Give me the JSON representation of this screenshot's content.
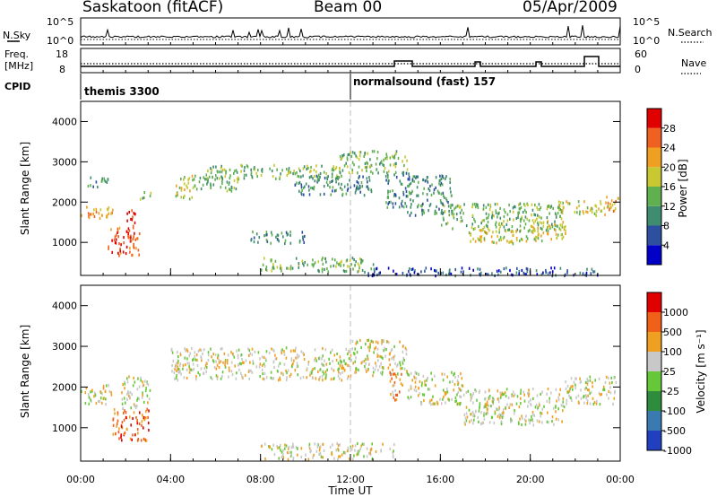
{
  "header": {
    "station": "Saskatoon (fitACF)",
    "beam": "Beam 00",
    "date": "05/Apr/2009"
  },
  "noise_panel": {
    "left_label": "N.Sky",
    "right_label": "N.Search",
    "left_ticks": [
      "10^5",
      "10^0"
    ],
    "right_ticks": [
      "10^5",
      "10^0"
    ]
  },
  "freq_panel": {
    "left_label_1": "Freq.",
    "left_label_2": "[MHz]",
    "right_label": "Nave",
    "left_ticks": [
      "18",
      "8"
    ],
    "right_ticks": [
      "60",
      "0"
    ]
  },
  "cpid_panel": {
    "label": "CPID",
    "segments": [
      "themis 3300",
      "normalsound (fast) 157"
    ]
  },
  "chart_data": [
    {
      "type": "heatmap",
      "title": "",
      "xlabel": "Time UT",
      "ylabel": "Slant Range [km]",
      "x_ticks": [
        "00:00",
        "04:00",
        "08:00",
        "12:00",
        "16:00",
        "20:00",
        "00:00"
      ],
      "y_ticks": [
        "1000",
        "2000",
        "3000",
        "4000"
      ],
      "xlim_hours": [
        0,
        24
      ],
      "ylim_km": [
        180,
        4500
      ],
      "colorbar_label": "Power [dB]",
      "colorbar_ticks": [
        "4",
        "8",
        "12",
        "16",
        "20",
        "24",
        "28"
      ],
      "colors": [
        "#0000c8",
        "#2c4fa0",
        "#3f8c70",
        "#60b050",
        "#c8c830",
        "#f0a020",
        "#f06020",
        "#e00000"
      ],
      "echo_bands": [
        {
          "t": [
            0.0,
            1.4
          ],
          "range_km": [
            1600,
            1950
          ],
          "level": 5
        },
        {
          "t": [
            1.2,
            2.6
          ],
          "range_km": [
            700,
            1400
          ],
          "level": 6
        },
        {
          "t": [
            2.0,
            2.4
          ],
          "range_km": [
            1100,
            1900
          ],
          "level": 7
        },
        {
          "t": [
            0.3,
            1.2
          ],
          "range_km": [
            2400,
            2700
          ],
          "level": 2
        },
        {
          "t": [
            2.6,
            3.1
          ],
          "range_km": [
            2100,
            2300
          ],
          "level": 3
        },
        {
          "t": [
            4.2,
            5.0
          ],
          "range_km": [
            2100,
            2700
          ],
          "level": 4
        },
        {
          "t": [
            5.0,
            7.0
          ],
          "range_km": [
            2300,
            2700
          ],
          "level": 3
        },
        {
          "t": [
            5.5,
            11.9
          ],
          "range_km": [
            2600,
            2950
          ],
          "level": 3
        },
        {
          "t": [
            9.5,
            13.0
          ],
          "range_km": [
            2200,
            2700
          ],
          "level": 2
        },
        {
          "t": [
            11.5,
            14.5
          ],
          "range_km": [
            2750,
            3300
          ],
          "level": 3
        },
        {
          "t": [
            13.5,
            14.6
          ],
          "range_km": [
            1900,
            2800
          ],
          "level": 2
        },
        {
          "t": [
            7.5,
            10.0
          ],
          "range_km": [
            1000,
            1300
          ],
          "level": 2
        },
        {
          "t": [
            8.0,
            13.0
          ],
          "range_km": [
            300,
            650
          ],
          "level": 3
        },
        {
          "t": [
            14.5,
            16.5
          ],
          "range_km": [
            1700,
            2700
          ],
          "level": 2
        },
        {
          "t": [
            16.0,
            21.5
          ],
          "range_km": [
            1300,
            2000
          ],
          "level": 3
        },
        {
          "t": [
            17.2,
            20.5
          ],
          "range_km": [
            1000,
            1350
          ],
          "level": 4
        },
        {
          "t": [
            20.0,
            21.6
          ],
          "range_km": [
            1100,
            1600
          ],
          "level": 4
        },
        {
          "t": [
            21.0,
            23.6
          ],
          "range_km": [
            1700,
            2050
          ],
          "level": 4
        },
        {
          "t": [
            23.3,
            23.9
          ],
          "range_km": [
            1800,
            2200
          ],
          "level": 5
        },
        {
          "t": [
            12.5,
            23.0
          ],
          "range_km": [
            200,
            400
          ],
          "level": 1
        }
      ]
    },
    {
      "type": "heatmap",
      "title": "",
      "xlabel": "Time UT",
      "ylabel": "Slant Range [km]",
      "x_ticks": [
        "00:00",
        "04:00",
        "08:00",
        "12:00",
        "16:00",
        "20:00",
        "00:00"
      ],
      "y_ticks": [
        "1000",
        "2000",
        "3000",
        "4000"
      ],
      "xlim_hours": [
        0,
        24
      ],
      "ylim_km": [
        180,
        4500
      ],
      "colorbar_label": "Velocity [m s⁻¹]",
      "colorbar_ticks": [
        "1000",
        "500",
        "100",
        "25",
        "-25",
        "-100",
        "-500",
        "-1000"
      ],
      "colors": [
        "#2040c0",
        "#3a7ab0",
        "#2e8c3c",
        "#66c838",
        "#c8c8c8",
        "#f0a020",
        "#f06018",
        "#e00000"
      ],
      "echo_bands": [
        {
          "t": [
            0.0,
            1.4
          ],
          "range_km": [
            1600,
            2100
          ],
          "level": 4
        },
        {
          "t": [
            1.4,
            3.0
          ],
          "range_km": [
            700,
            1500
          ],
          "level": 6
        },
        {
          "t": [
            1.8,
            3.1
          ],
          "range_km": [
            1500,
            2300
          ],
          "level": 4
        },
        {
          "t": [
            4.0,
            12.0
          ],
          "range_km": [
            2200,
            3000
          ],
          "level": 4
        },
        {
          "t": [
            12.0,
            14.5
          ],
          "range_km": [
            2300,
            3200
          ],
          "level": 4
        },
        {
          "t": [
            14.5,
            17.0
          ],
          "range_km": [
            1600,
            2400
          ],
          "level": 4
        },
        {
          "t": [
            17.0,
            21.5
          ],
          "range_km": [
            1100,
            2000
          ],
          "level": 4
        },
        {
          "t": [
            21.5,
            23.8
          ],
          "range_km": [
            1600,
            2300
          ],
          "level": 4
        },
        {
          "t": [
            8.0,
            14.0
          ],
          "range_km": [
            250,
            650
          ],
          "level": 4
        },
        {
          "t": [
            13.7,
            14.3
          ],
          "range_km": [
            1700,
            2500
          ],
          "level": 5
        }
      ]
    }
  ]
}
